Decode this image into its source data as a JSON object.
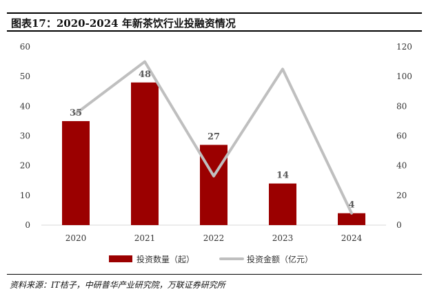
{
  "figure_title": "图表17：2020-2024 年新茶饮行业投融资情况",
  "source": "资料来源：IT桔子，中研普华产业研究院，万联证券研究所",
  "chart_data": {
    "type": "bar",
    "categories": [
      "2020",
      "2021",
      "2022",
      "2023",
      "2024"
    ],
    "series": [
      {
        "name": "投资数量（起）",
        "type": "bar",
        "axis": "left",
        "color": "#9b0000",
        "values": [
          35,
          48,
          27,
          14,
          4
        ],
        "labels": [
          "35",
          "48",
          "27",
          "14",
          "4"
        ]
      },
      {
        "name": "投资金额（亿元）",
        "type": "line",
        "axis": "right",
        "color": "#bfbfbf",
        "values": [
          75,
          110,
          33,
          105,
          8
        ]
      }
    ],
    "y_left": {
      "min": 0,
      "max": 60,
      "ticks": [
        "0",
        "10",
        "20",
        "30",
        "40",
        "50",
        "60"
      ]
    },
    "y_right": {
      "min": 0,
      "max": 120,
      "ticks": [
        "0",
        "20",
        "40",
        "60",
        "80",
        "100",
        "120"
      ]
    },
    "grid": false,
    "legend_position": "bottom"
  }
}
